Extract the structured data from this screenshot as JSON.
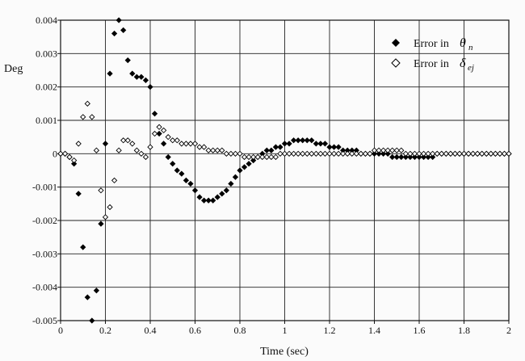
{
  "chart_data": {
    "type": "scatter",
    "ylabel": "Deg",
    "xlabel": "Time (sec)",
    "xlim": [
      0,
      2
    ],
    "ylim": [
      -0.005,
      0.004
    ],
    "xticks": [
      "0",
      "0.2",
      "0.4",
      "0.6",
      "0.8",
      "1",
      "1.2",
      "1.4",
      "1.6",
      "1.8",
      "2"
    ],
    "yticks": [
      "0.004",
      "0.003",
      "0.002",
      "0.001",
      "0",
      "-0.001",
      "-0.002",
      "-0.003",
      "-0.004",
      "-0.005"
    ],
    "grid": true,
    "legend_position": "top-right",
    "series": [
      {
        "name": "Error in θn",
        "legend_prefix": "Error in",
        "legend_symbol": "θ",
        "legend_subscript": "n",
        "marker": "filled-diamond",
        "color": "#000000",
        "x": [
          0.0,
          0.02,
          0.04,
          0.06,
          0.08,
          0.1,
          0.12,
          0.14,
          0.16,
          0.18,
          0.2,
          0.22,
          0.24,
          0.26,
          0.28,
          0.3,
          0.32,
          0.34,
          0.36,
          0.38,
          0.4,
          0.42,
          0.44,
          0.46,
          0.48,
          0.5,
          0.52,
          0.54,
          0.56,
          0.58,
          0.6,
          0.62,
          0.64,
          0.66,
          0.68,
          0.7,
          0.72,
          0.74,
          0.76,
          0.78,
          0.8,
          0.82,
          0.84,
          0.86,
          0.88,
          0.9,
          0.92,
          0.94,
          0.96,
          0.98,
          1.0,
          1.02,
          1.04,
          1.06,
          1.08,
          1.1,
          1.12,
          1.14,
          1.16,
          1.18,
          1.2,
          1.22,
          1.24,
          1.26,
          1.28,
          1.3,
          1.32,
          1.34,
          1.36,
          1.38,
          1.4,
          1.42,
          1.44,
          1.46,
          1.48,
          1.5,
          1.52,
          1.54,
          1.56,
          1.58,
          1.6,
          1.62,
          1.64,
          1.66,
          1.68,
          1.7,
          1.72,
          1.74,
          1.76,
          1.78,
          1.8,
          1.82,
          1.84,
          1.86,
          1.88,
          1.9,
          1.92,
          1.94,
          1.96,
          1.98,
          2.0
        ],
        "y": [
          0,
          0,
          -0.0001,
          -0.0003,
          -0.0012,
          -0.0028,
          -0.0043,
          -0.005,
          -0.0041,
          -0.0021,
          0.0003,
          0.0024,
          0.0036,
          0.004,
          0.0037,
          0.0028,
          0.0024,
          0.0023,
          0.0023,
          0.0022,
          0.002,
          0.0012,
          0.0006,
          0.0003,
          -0.0001,
          -0.0003,
          -0.0005,
          -0.0006,
          -0.0008,
          -0.0009,
          -0.0011,
          -0.0013,
          -0.0014,
          -0.0014,
          -0.0014,
          -0.0013,
          -0.0012,
          -0.0011,
          -0.0009,
          -0.0007,
          -0.0005,
          -0.0004,
          -0.0003,
          -0.0002,
          -0.0001,
          0,
          0.0001,
          0.0001,
          0.0002,
          0.0002,
          0.0003,
          0.0003,
          0.0004,
          0.0004,
          0.0004,
          0.0004,
          0.0004,
          0.0003,
          0.0003,
          0.0003,
          0.0002,
          0.0002,
          0.0002,
          0.0001,
          0.0001,
          0.0001,
          0.0001,
          0,
          0,
          0,
          0,
          0,
          0,
          0,
          -0.0001,
          -0.0001,
          -0.0001,
          -0.0001,
          -0.0001,
          -0.0001,
          -0.0001,
          -0.0001,
          -0.0001,
          -0.0001,
          0,
          0,
          0,
          0,
          0,
          0,
          0,
          0,
          0,
          0,
          0,
          0,
          0,
          0,
          0,
          0,
          0
        ]
      },
      {
        "name": "Error in δej",
        "legend_prefix": "Error in",
        "legend_symbol": "δ",
        "legend_subscript": "ej",
        "marker": "open-diamond",
        "color": "#000000",
        "x": [
          0.0,
          0.02,
          0.04,
          0.06,
          0.08,
          0.1,
          0.12,
          0.14,
          0.16,
          0.18,
          0.2,
          0.22,
          0.24,
          0.26,
          0.28,
          0.3,
          0.32,
          0.34,
          0.36,
          0.38,
          0.4,
          0.42,
          0.44,
          0.46,
          0.48,
          0.5,
          0.52,
          0.54,
          0.56,
          0.58,
          0.6,
          0.62,
          0.64,
          0.66,
          0.68,
          0.7,
          0.72,
          0.74,
          0.76,
          0.78,
          0.8,
          0.82,
          0.84,
          0.86,
          0.88,
          0.9,
          0.92,
          0.94,
          0.96,
          0.98,
          1.0,
          1.02,
          1.04,
          1.06,
          1.08,
          1.1,
          1.12,
          1.14,
          1.16,
          1.18,
          1.2,
          1.22,
          1.24,
          1.26,
          1.28,
          1.3,
          1.32,
          1.34,
          1.36,
          1.38,
          1.4,
          1.42,
          1.44,
          1.46,
          1.48,
          1.5,
          1.52,
          1.54,
          1.56,
          1.58,
          1.6,
          1.62,
          1.64,
          1.66,
          1.68,
          1.7,
          1.72,
          1.74,
          1.76,
          1.78,
          1.8,
          1.82,
          1.84,
          1.86,
          1.88,
          1.9,
          1.92,
          1.94,
          1.96,
          1.98,
          2.0
        ],
        "y": [
          0,
          0,
          -0.0001,
          -0.0002,
          0.0003,
          0.0011,
          0.0015,
          0.0011,
          0.0001,
          -0.0011,
          -0.0019,
          -0.0016,
          -0.0008,
          0.0001,
          0.0004,
          0.0004,
          0.0003,
          0.0001,
          0,
          -0.0001,
          0.0002,
          0.0006,
          0.0008,
          0.0007,
          0.0005,
          0.0004,
          0.0004,
          0.0003,
          0.0003,
          0.0003,
          0.0003,
          0.0002,
          0.0002,
          0.0001,
          0.0001,
          0.0001,
          0.0001,
          0,
          0,
          0,
          0,
          -0.0001,
          -0.0001,
          -0.0001,
          -0.0001,
          -0.0001,
          -0.0001,
          -0.0001,
          -0.0001,
          0,
          0,
          0,
          0,
          0,
          0,
          0,
          0,
          0,
          0,
          0,
          0,
          0,
          0,
          0,
          0,
          0,
          0,
          0,
          0,
          0,
          0.0001,
          0.0001,
          0.0001,
          0.0001,
          0.0001,
          0.0001,
          0.0001,
          0,
          0,
          0,
          0,
          0,
          0,
          0,
          0,
          0,
          0,
          0,
          0,
          0,
          0,
          0,
          0,
          0,
          0,
          0,
          0,
          0,
          0,
          0,
          0
        ]
      }
    ]
  }
}
